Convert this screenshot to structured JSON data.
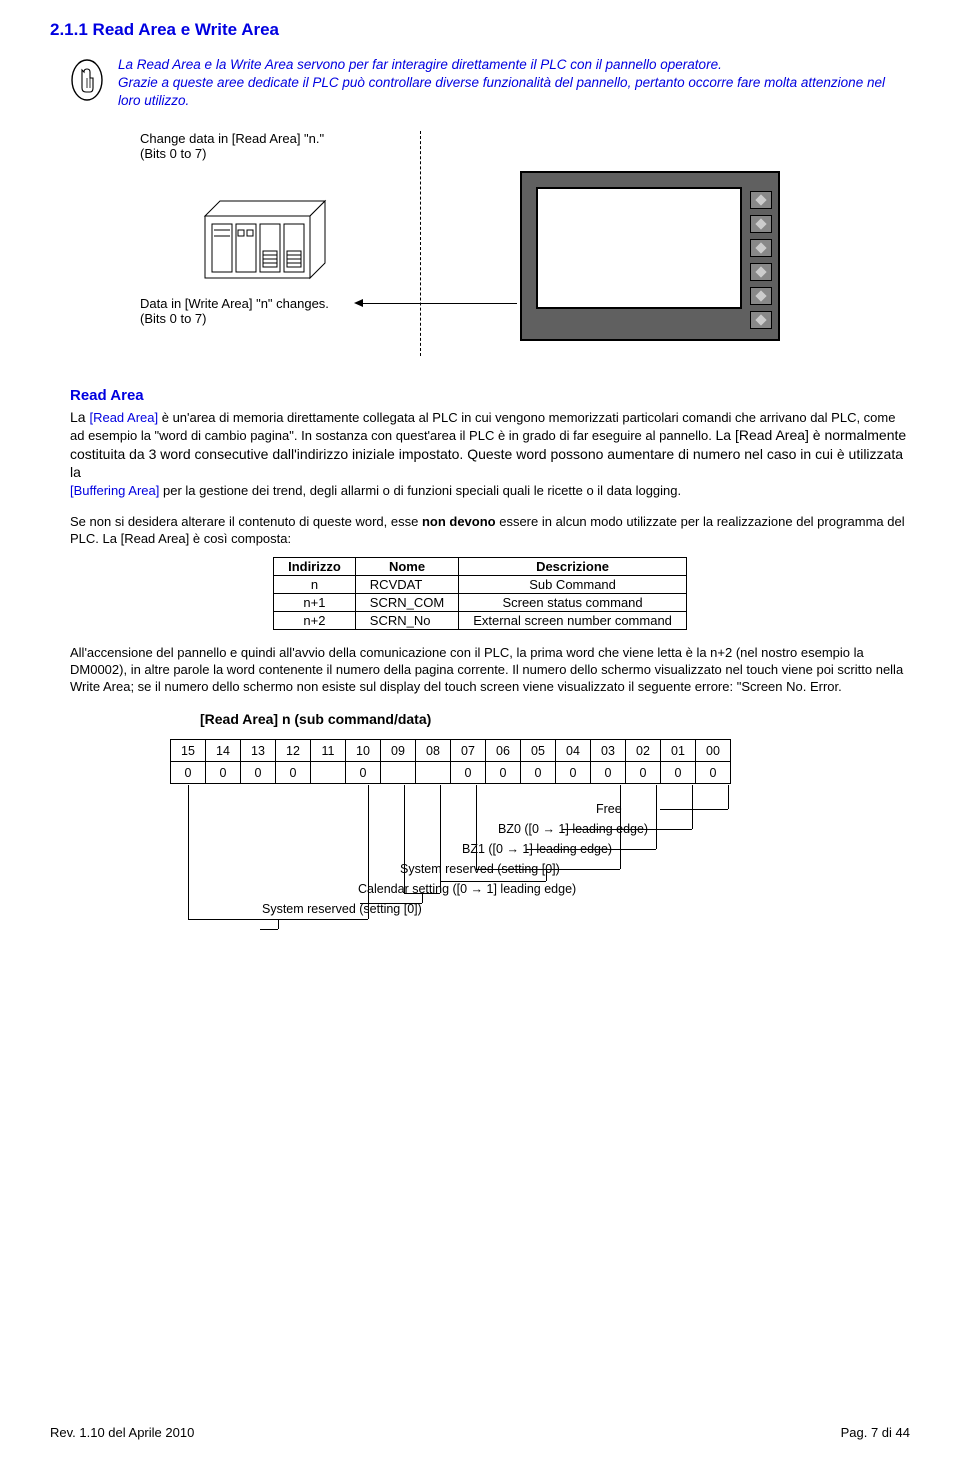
{
  "section_number": "2.1.1",
  "section_title": "Read Area e Write Area",
  "intro": {
    "line1": "La Read Area e la Write Area servono per far interagire direttamente il PLC con il pannello operatore.",
    "line2": "Grazie a queste aree dedicate il PLC può controllare diverse funzionalità del pannello, pertanto occorre fare molta attenzione nel loro utilizzo."
  },
  "diagram1": {
    "label_top1": "Change data in [Read Area] \"n.\"",
    "label_top2": "(Bits 0 to 7)",
    "label_bot1": "Data in [Write Area] \"n\" changes.",
    "label_bot2": "(Bits 0 to 7)"
  },
  "read_area_heading": "Read Area",
  "read_area_para": {
    "lead": "La ",
    "ref1": "[Read Area]",
    "p1": " è un'area di memoria direttamente collegata al PLC in cui vengono memorizzati particolari comandi che arrivano dal PLC, come ad esempio la \"word di cambio pagina\". In sostanza con quest'area il PLC  è in grado di far eseguire al pannello. ",
    "lead2": "La [Read Area] è normalmente costituita da 3 word consecutive dall'indirizzo iniziale impostato. Queste word possono aumentare di numero nel caso in cui è utilizzata la ",
    "ref2": "[Buffering Area]",
    "p2": " per la gestione dei trend, degli allarmi o di funzioni speciali quali le ricette o il data logging."
  },
  "para2_a": "Se non si desidera alterare il contenuto di queste word, esse ",
  "para2_bold": "non devono",
  "para2_b": " essere in alcun modo utilizzate per la realizzazione del programma del PLC. La [Read Area] è così composta:",
  "table": {
    "headers": [
      "Indirizzo",
      "Nome",
      "Descrizione"
    ],
    "rows": [
      [
        "n",
        "RCVDAT",
        "Sub Command"
      ],
      [
        "n+1",
        "SCRN_COM",
        "Screen status command"
      ],
      [
        "n+2",
        "SCRN_No",
        "External screen number command"
      ]
    ]
  },
  "para3": "All'accensione del pannello e quindi all'avvio della comunicazione con il PLC, la prima word che viene letta è la n+2 (nel nostro esempio la DM0002), in altre parole la word contenente il numero della pagina corrente. Il numero dello schermo visualizzato nel touch viene poi scritto nella Write Area; se il numero dello schermo non esiste sul display del touch screen viene visualizzato il seguente errore: \"Screen No. Error.",
  "diagram2": {
    "title": "[Read Area] n (sub command/data)",
    "bits": [
      "15",
      "14",
      "13",
      "12",
      "11",
      "10",
      "09",
      "08",
      "07",
      "06",
      "05",
      "04",
      "03",
      "02",
      "01",
      "00"
    ],
    "vals": [
      "0",
      "0",
      "0",
      "0",
      "",
      "0",
      "",
      "",
      "0",
      "0",
      "0",
      "0",
      "0",
      "0",
      "0",
      "0"
    ],
    "lbl_free": "Free",
    "lbl_bz0": "BZ0 ([0 → 1] leading edge)",
    "lbl_bz1": "BZ1 ([0 → 1] leading edge)",
    "lbl_sys1": "System reserved (setting [0])",
    "lbl_cal": "Calendar setting ([0 → 1] leading edge)",
    "lbl_sys2": "System reserved (setting [0])"
  },
  "footer_left": "Rev. 1.10 del Aprile 2010",
  "footer_right": "Pag. 7 di 44"
}
